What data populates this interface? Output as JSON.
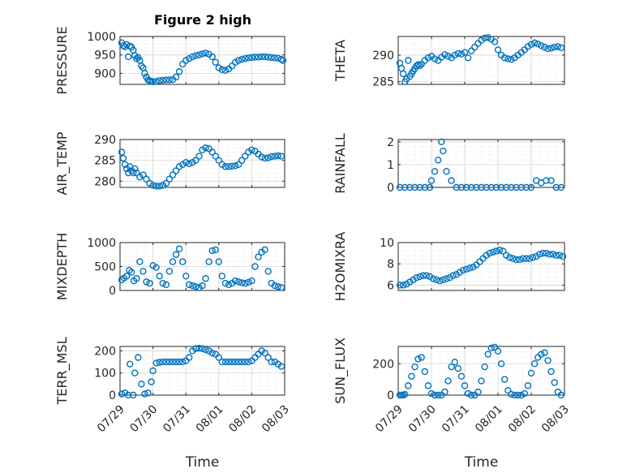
{
  "figure": {
    "title": "Figure 2 high"
  },
  "chart_data": [
    {
      "type": "scatter",
      "id": "pressure",
      "ylabel": "PRESSURE",
      "ylim": [
        870,
        1000
      ],
      "yticks": [
        900,
        950,
        1000
      ],
      "ytick_labels": [
        "900",
        "950",
        "1000"
      ],
      "xlim": [
        0,
        5
      ],
      "grid": "on",
      "x": [
        0.05,
        0.1,
        0.15,
        0.2,
        0.25,
        0.3,
        0.35,
        0.4,
        0.45,
        0.5,
        0.55,
        0.6,
        0.65,
        0.7,
        0.75,
        0.8,
        0.85,
        0.9,
        0.95,
        1.0,
        1.1,
        1.2,
        1.3,
        1.4,
        1.5,
        1.6,
        1.7,
        1.8,
        1.9,
        2.0,
        2.1,
        2.2,
        2.3,
        2.4,
        2.5,
        2.6,
        2.7,
        2.8,
        2.9,
        3.0,
        3.1,
        3.2,
        3.3,
        3.4,
        3.5,
        3.6,
        3.7,
        3.8,
        3.9,
        4.0,
        4.1,
        4.2,
        4.3,
        4.4,
        4.5,
        4.6,
        4.7,
        4.8,
        4.9,
        4.95
      ],
      "y": [
        983,
        975,
        972,
        978,
        945,
        974,
        971,
        963,
        948,
        940,
        943,
        935,
        920,
        915,
        900,
        890,
        882,
        880,
        878,
        877,
        878,
        880,
        881,
        882,
        882,
        883,
        890,
        905,
        925,
        935,
        940,
        945,
        948,
        950,
        953,
        955,
        952,
        945,
        930,
        915,
        910,
        908,
        912,
        920,
        930,
        935,
        938,
        940,
        942,
        943,
        944,
        944,
        945,
        945,
        944,
        943,
        942,
        941,
        938,
        935
      ]
    },
    {
      "type": "scatter",
      "id": "theta",
      "ylabel": "THETA",
      "ylim": [
        284.5,
        293.5
      ],
      "yticks": [
        285,
        290
      ],
      "ytick_labels": [
        "285",
        "290"
      ],
      "xlim": [
        0,
        5
      ],
      "grid": "on",
      "x": [
        0.05,
        0.1,
        0.15,
        0.2,
        0.25,
        0.3,
        0.35,
        0.4,
        0.45,
        0.5,
        0.55,
        0.6,
        0.65,
        0.7,
        0.8,
        0.9,
        1.0,
        1.1,
        1.2,
        1.3,
        1.4,
        1.5,
        1.6,
        1.7,
        1.8,
        1.9,
        2.0,
        2.1,
        2.2,
        2.3,
        2.4,
        2.5,
        2.6,
        2.7,
        2.8,
        2.9,
        3.0,
        3.1,
        3.2,
        3.3,
        3.4,
        3.5,
        3.6,
        3.7,
        3.8,
        3.9,
        4.0,
        4.1,
        4.2,
        4.3,
        4.4,
        4.5,
        4.6,
        4.7,
        4.8,
        4.9
      ],
      "y": [
        288.5,
        287.5,
        286.5,
        285,
        285.5,
        289,
        286,
        286.5,
        287,
        287.5,
        288,
        288.2,
        288,
        288.3,
        289,
        289.5,
        289.8,
        289.3,
        289,
        289.6,
        290.1,
        289.8,
        289.5,
        290,
        290.3,
        290.2,
        290.5,
        289.5,
        290.8,
        291.5,
        292.2,
        292.8,
        293.2,
        293.3,
        293,
        292.5,
        291,
        290,
        289.5,
        289.3,
        289.2,
        289.5,
        290,
        290.5,
        291,
        291.6,
        292,
        292.3,
        292.1,
        291.8,
        291.5,
        291.2,
        291.3,
        291.5,
        291.6,
        291.4
      ]
    },
    {
      "type": "scatter",
      "id": "air_temp",
      "ylabel": "AIR_TEMP",
      "ylim": [
        278.5,
        290
      ],
      "yticks": [
        280,
        285,
        290
      ],
      "ytick_labels": [
        "280",
        "285",
        "290"
      ],
      "xlim": [
        0,
        5
      ],
      "grid": "on",
      "x": [
        0.05,
        0.1,
        0.15,
        0.2,
        0.25,
        0.3,
        0.35,
        0.4,
        0.45,
        0.5,
        0.6,
        0.7,
        0.8,
        0.9,
        1.0,
        1.1,
        1.2,
        1.3,
        1.4,
        1.5,
        1.6,
        1.7,
        1.8,
        1.9,
        2.0,
        2.1,
        2.2,
        2.3,
        2.4,
        2.5,
        2.6,
        2.7,
        2.8,
        2.9,
        3.0,
        3.1,
        3.2,
        3.3,
        3.4,
        3.5,
        3.6,
        3.7,
        3.8,
        3.9,
        4.0,
        4.1,
        4.2,
        4.3,
        4.4,
        4.5,
        4.6,
        4.7,
        4.8,
        4.9
      ],
      "y": [
        287,
        285.5,
        284,
        283,
        282,
        283.5,
        282.5,
        282,
        283,
        282,
        281,
        281.5,
        280.5,
        279.5,
        279,
        278.8,
        278.8,
        279,
        279.5,
        280.5,
        281.5,
        282.5,
        283.5,
        284,
        284.5,
        284.2,
        284.5,
        285,
        286,
        287.5,
        288,
        287.8,
        287,
        286,
        285,
        284,
        283.5,
        283.5,
        283.6,
        283.7,
        284,
        285,
        286,
        287,
        287.5,
        287.2,
        286.5,
        285.8,
        285.5,
        285.6,
        285.9,
        286,
        286.1,
        286
      ]
    },
    {
      "type": "scatter",
      "id": "rainfall",
      "ylabel": "RAINFALL",
      "ylim": [
        0,
        2.1
      ],
      "yticks": [
        0,
        1,
        2
      ],
      "ytick_labels": [
        "0",
        "1",
        "2"
      ],
      "xlim": [
        0,
        5
      ],
      "grid": "on",
      "x": [
        0.05,
        0.2,
        0.35,
        0.5,
        0.65,
        0.8,
        0.95,
        1.0,
        1.1,
        1.2,
        1.3,
        1.35,
        1.45,
        1.6,
        1.75,
        1.9,
        2.05,
        2.2,
        2.35,
        2.5,
        2.65,
        2.8,
        2.95,
        3.1,
        3.25,
        3.4,
        3.55,
        3.7,
        3.85,
        4.0,
        4.15,
        4.3,
        4.45,
        4.6,
        4.75,
        4.9
      ],
      "y": [
        0,
        0,
        0,
        0,
        0,
        0,
        0,
        0.3,
        0.7,
        1.2,
        2.0,
        1.6,
        0.7,
        0.3,
        0,
        0,
        0,
        0,
        0,
        0,
        0,
        0,
        0,
        0,
        0,
        0,
        0,
        0,
        0,
        0,
        0.3,
        0.2,
        0.3,
        0.3,
        0,
        0
      ]
    },
    {
      "type": "scatter",
      "id": "mixdepth",
      "ylabel": "MIXDEPTH",
      "ylim": [
        0,
        1000
      ],
      "yticks": [
        0,
        500,
        1000
      ],
      "ytick_labels": [
        "0",
        "500",
        "1000"
      ],
      "xlim": [
        0,
        5
      ],
      "grid": "on",
      "x": [
        0.05,
        0.12,
        0.2,
        0.28,
        0.35,
        0.42,
        0.5,
        0.6,
        0.7,
        0.8,
        0.9,
        1.0,
        1.1,
        1.2,
        1.3,
        1.4,
        1.5,
        1.6,
        1.7,
        1.8,
        1.9,
        2.0,
        2.1,
        2.2,
        2.3,
        2.4,
        2.5,
        2.6,
        2.7,
        2.8,
        2.9,
        3.0,
        3.1,
        3.2,
        3.3,
        3.4,
        3.5,
        3.6,
        3.7,
        3.8,
        3.9,
        4.0,
        4.1,
        4.2,
        4.3,
        4.4,
        4.5,
        4.6,
        4.7,
        4.8,
        4.9
      ],
      "y": [
        220,
        260,
        300,
        420,
        380,
        200,
        250,
        600,
        400,
        180,
        150,
        520,
        480,
        300,
        150,
        120,
        400,
        600,
        750,
        870,
        600,
        300,
        120,
        100,
        80,
        60,
        100,
        250,
        600,
        830,
        850,
        600,
        300,
        150,
        120,
        150,
        200,
        180,
        160,
        150,
        170,
        200,
        500,
        700,
        800,
        850,
        400,
        150,
        100,
        80,
        60
      ]
    },
    {
      "type": "scatter",
      "id": "h2omixra",
      "ylabel": "H2OMIXRA",
      "ylim": [
        5.5,
        10
      ],
      "yticks": [
        6,
        8,
        10
      ],
      "ytick_labels": [
        "6",
        "8",
        "10"
      ],
      "xlim": [
        0,
        5
      ],
      "grid": "on",
      "x": [
        0.05,
        0.15,
        0.25,
        0.35,
        0.45,
        0.55,
        0.65,
        0.75,
        0.85,
        0.95,
        1.05,
        1.15,
        1.25,
        1.35,
        1.45,
        1.55,
        1.65,
        1.75,
        1.85,
        1.95,
        2.05,
        2.15,
        2.25,
        2.35,
        2.45,
        2.55,
        2.65,
        2.75,
        2.85,
        2.95,
        3.05,
        3.15,
        3.25,
        3.35,
        3.45,
        3.55,
        3.65,
        3.75,
        3.85,
        3.95,
        4.05,
        4.15,
        4.25,
        4.35,
        4.45,
        4.55,
        4.65,
        4.75,
        4.85,
        4.95
      ],
      "y": [
        6.0,
        6.0,
        6.1,
        6.3,
        6.5,
        6.7,
        6.8,
        6.9,
        6.9,
        6.8,
        6.6,
        6.5,
        6.4,
        6.5,
        6.6,
        6.7,
        6.9,
        7.0,
        7.2,
        7.4,
        7.5,
        7.6,
        7.7,
        7.9,
        8.2,
        8.5,
        8.8,
        9.0,
        9.1,
        9.2,
        9.3,
        9.2,
        8.8,
        8.6,
        8.5,
        8.4,
        8.4,
        8.5,
        8.5,
        8.5,
        8.6,
        8.7,
        8.9,
        9.0,
        9.0,
        8.9,
        8.9,
        8.8,
        8.8,
        8.7
      ]
    },
    {
      "type": "scatter",
      "id": "terr_msl",
      "ylabel": "TERR_MSL",
      "ylim": [
        0,
        220
      ],
      "yticks": [
        0,
        100,
        200
      ],
      "ytick_labels": [
        "0",
        "100",
        "200"
      ],
      "xlim": [
        0,
        5
      ],
      "grid": "on",
      "x": [
        0.05,
        0.15,
        0.25,
        0.3,
        0.4,
        0.45,
        0.55,
        0.65,
        0.75,
        0.85,
        0.95,
        1.0,
        1.1,
        1.2,
        1.3,
        1.4,
        1.5,
        1.6,
        1.7,
        1.8,
        1.9,
        2.0,
        2.1,
        2.2,
        2.3,
        2.4,
        2.5,
        2.6,
        2.7,
        2.8,
        2.9,
        3.0,
        3.1,
        3.2,
        3.3,
        3.4,
        3.5,
        3.6,
        3.7,
        3.8,
        3.9,
        4.0,
        4.1,
        4.2,
        4.3,
        4.4,
        4.5,
        4.6,
        4.7,
        4.8,
        4.9
      ],
      "y": [
        5,
        10,
        0,
        140,
        0,
        100,
        170,
        50,
        5,
        10,
        60,
        110,
        145,
        148,
        150,
        150,
        150,
        150,
        150,
        150,
        150,
        155,
        170,
        200,
        210,
        212,
        210,
        205,
        200,
        190,
        185,
        170,
        150,
        150,
        150,
        150,
        150,
        150,
        150,
        150,
        150,
        155,
        170,
        185,
        200,
        190,
        170,
        150,
        150,
        140,
        130
      ]
    },
    {
      "type": "scatter",
      "id": "sun_flux",
      "ylabel": "SUN_FLUX",
      "ylim": [
        0,
        310
      ],
      "yticks": [
        0,
        200
      ],
      "ytick_labels": [
        "0",
        "200"
      ],
      "xlim": [
        0,
        5
      ],
      "grid": "on",
      "x": [
        0.05,
        0.1,
        0.15,
        0.2,
        0.3,
        0.4,
        0.5,
        0.6,
        0.7,
        0.8,
        0.9,
        1.0,
        1.1,
        1.2,
        1.3,
        1.4,
        1.5,
        1.6,
        1.7,
        1.8,
        1.9,
        2.0,
        2.1,
        2.2,
        2.3,
        2.4,
        2.5,
        2.6,
        2.7,
        2.8,
        2.9,
        3.0,
        3.1,
        3.2,
        3.3,
        3.4,
        3.5,
        3.6,
        3.7,
        3.8,
        3.9,
        4.0,
        4.1,
        4.2,
        4.3,
        4.4,
        4.5,
        4.6,
        4.7,
        4.8,
        4.9
      ],
      "y": [
        0,
        0,
        0,
        5,
        60,
        120,
        180,
        230,
        240,
        150,
        60,
        10,
        0,
        0,
        0,
        20,
        90,
        180,
        210,
        170,
        120,
        60,
        10,
        0,
        0,
        20,
        90,
        180,
        260,
        300,
        305,
        280,
        200,
        100,
        30,
        5,
        0,
        0,
        0,
        10,
        60,
        140,
        200,
        240,
        260,
        270,
        220,
        150,
        80,
        20,
        0
      ]
    }
  ],
  "xaxis": {
    "ticks": [
      0,
      1,
      2,
      3,
      4,
      5
    ],
    "tick_labels": [
      "07/29",
      "07/30",
      "07/31",
      "08/01",
      "08/02",
      "08/03"
    ],
    "label": "Time"
  },
  "colors": {
    "marker": "#0072BD",
    "grid": "#dfdfdf",
    "axis": "#262626"
  }
}
